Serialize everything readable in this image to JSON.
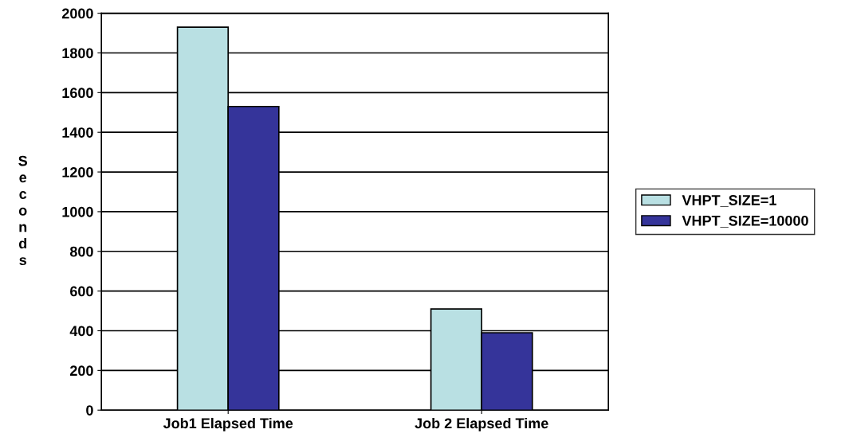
{
  "chart_data": {
    "type": "bar",
    "ylabel": "Seconds",
    "categories": [
      "Job1 Elapsed Time",
      "Job 2 Elapsed Time"
    ],
    "series": [
      {
        "name": "VHPT_SIZE=1",
        "color": "#b9e0e3",
        "values": [
          1930,
          510
        ]
      },
      {
        "name": "VHPT_SIZE=10000",
        "color": "#35349a",
        "values": [
          1530,
          390
        ]
      }
    ],
    "ylim": [
      0,
      2000
    ],
    "yticks": [
      0,
      200,
      400,
      600,
      800,
      1000,
      1200,
      1400,
      1600,
      1800,
      2000
    ],
    "grid": "y",
    "legend": "right"
  }
}
